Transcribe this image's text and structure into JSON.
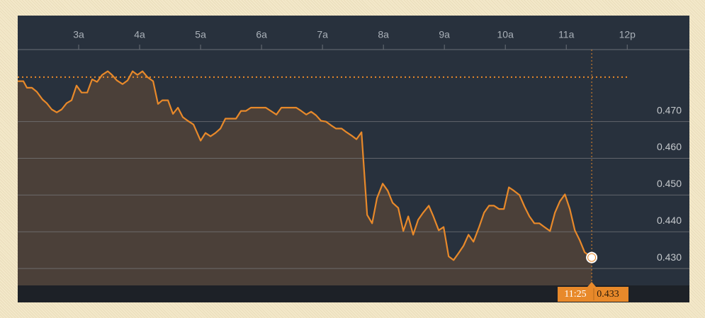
{
  "chart_data": {
    "type": "area",
    "xlim": [
      2,
      13.02
    ],
    "ylim": [
      0.4254,
      0.4896
    ],
    "xticks": [
      {
        "value": 3,
        "label": "3a"
      },
      {
        "value": 4,
        "label": "4a"
      },
      {
        "value": 5,
        "label": "5a"
      },
      {
        "value": 6,
        "label": "6a"
      },
      {
        "value": 7,
        "label": "7a"
      },
      {
        "value": 8,
        "label": "8a"
      },
      {
        "value": 9,
        "label": "9a"
      },
      {
        "value": 10,
        "label": "10a"
      },
      {
        "value": 11,
        "label": "11a"
      },
      {
        "value": 12,
        "label": "12p"
      }
    ],
    "yticks": [
      {
        "value": 0.43,
        "label": "0.430"
      },
      {
        "value": 0.44,
        "label": "0.440"
      },
      {
        "value": 0.45,
        "label": "0.450"
      },
      {
        "value": 0.46,
        "label": "0.460"
      },
      {
        "value": 0.47,
        "label": "0.470"
      }
    ],
    "grid": true,
    "color": "#e8892a",
    "fill_color": "#4b4039",
    "reference_line": 0.4821,
    "current": {
      "time": "11:25",
      "value": 0.433
    },
    "x": [
      2.0,
      2.093,
      2.151,
      2.233,
      2.314,
      2.407,
      2.477,
      2.558,
      2.64,
      2.721,
      2.802,
      2.884,
      2.965,
      3.047,
      3.14,
      3.221,
      3.302,
      3.384,
      3.477,
      3.547,
      3.628,
      3.721,
      3.802,
      3.884,
      3.965,
      4.047,
      4.128,
      4.221,
      4.302,
      4.372,
      4.465,
      4.547,
      4.628,
      4.709,
      4.791,
      4.884,
      5.0,
      5.081,
      5.163,
      5.244,
      5.326,
      5.407,
      5.488,
      5.581,
      5.663,
      5.744,
      5.826,
      5.907,
      5.988,
      6.07,
      6.151,
      6.244,
      6.326,
      6.407,
      6.488,
      6.57,
      6.651,
      6.733,
      6.814,
      6.895,
      6.977,
      7.058,
      7.14,
      7.221,
      7.314,
      7.395,
      7.477,
      7.558,
      7.64,
      7.733,
      7.814,
      7.895,
      7.988,
      8.07,
      8.151,
      8.244,
      8.326,
      8.407,
      8.488,
      8.57,
      8.651,
      8.744,
      8.814,
      8.907,
      8.988,
      9.07,
      9.151,
      9.233,
      9.314,
      9.395,
      9.477,
      9.57,
      9.651,
      9.733,
      9.814,
      9.895,
      9.977,
      10.058,
      10.14,
      10.233,
      10.314,
      10.395,
      10.477,
      10.558,
      10.64,
      10.733,
      10.814,
      10.895,
      10.977,
      11.058,
      11.14,
      11.221,
      11.302,
      11.417
    ],
    "values": [
      0.481,
      0.481,
      0.4792,
      0.4792,
      0.4781,
      0.476,
      0.475,
      0.4733,
      0.4725,
      0.4733,
      0.475,
      0.4758,
      0.4798,
      0.4779,
      0.4779,
      0.4815,
      0.4808,
      0.4827,
      0.4837,
      0.4827,
      0.4812,
      0.4802,
      0.4812,
      0.4837,
      0.4827,
      0.4837,
      0.4821,
      0.481,
      0.4748,
      0.4758,
      0.4758,
      0.4721,
      0.4738,
      0.4712,
      0.4702,
      0.4692,
      0.4648,
      0.4669,
      0.466,
      0.4669,
      0.4681,
      0.4708,
      0.4708,
      0.4708,
      0.4729,
      0.4729,
      0.4738,
      0.4738,
      0.4738,
      0.4738,
      0.4729,
      0.4719,
      0.4738,
      0.4738,
      0.4738,
      0.4738,
      0.4729,
      0.4719,
      0.4727,
      0.4717,
      0.4702,
      0.47,
      0.469,
      0.4681,
      0.4681,
      0.4671,
      0.4662,
      0.4652,
      0.4671,
      0.4446,
      0.4423,
      0.4492,
      0.4531,
      0.4512,
      0.4479,
      0.4465,
      0.4402,
      0.4442,
      0.4392,
      0.4433,
      0.4452,
      0.4471,
      0.4444,
      0.4404,
      0.4413,
      0.4333,
      0.4323,
      0.4342,
      0.4362,
      0.4392,
      0.4373,
      0.4413,
      0.4452,
      0.4471,
      0.4471,
      0.4462,
      0.4462,
      0.4521,
      0.4512,
      0.45,
      0.4469,
      0.4442,
      0.4423,
      0.4423,
      0.4413,
      0.4402,
      0.4452,
      0.4483,
      0.4502,
      0.4462,
      0.4404,
      0.4377,
      0.4344,
      0.433
    ]
  }
}
